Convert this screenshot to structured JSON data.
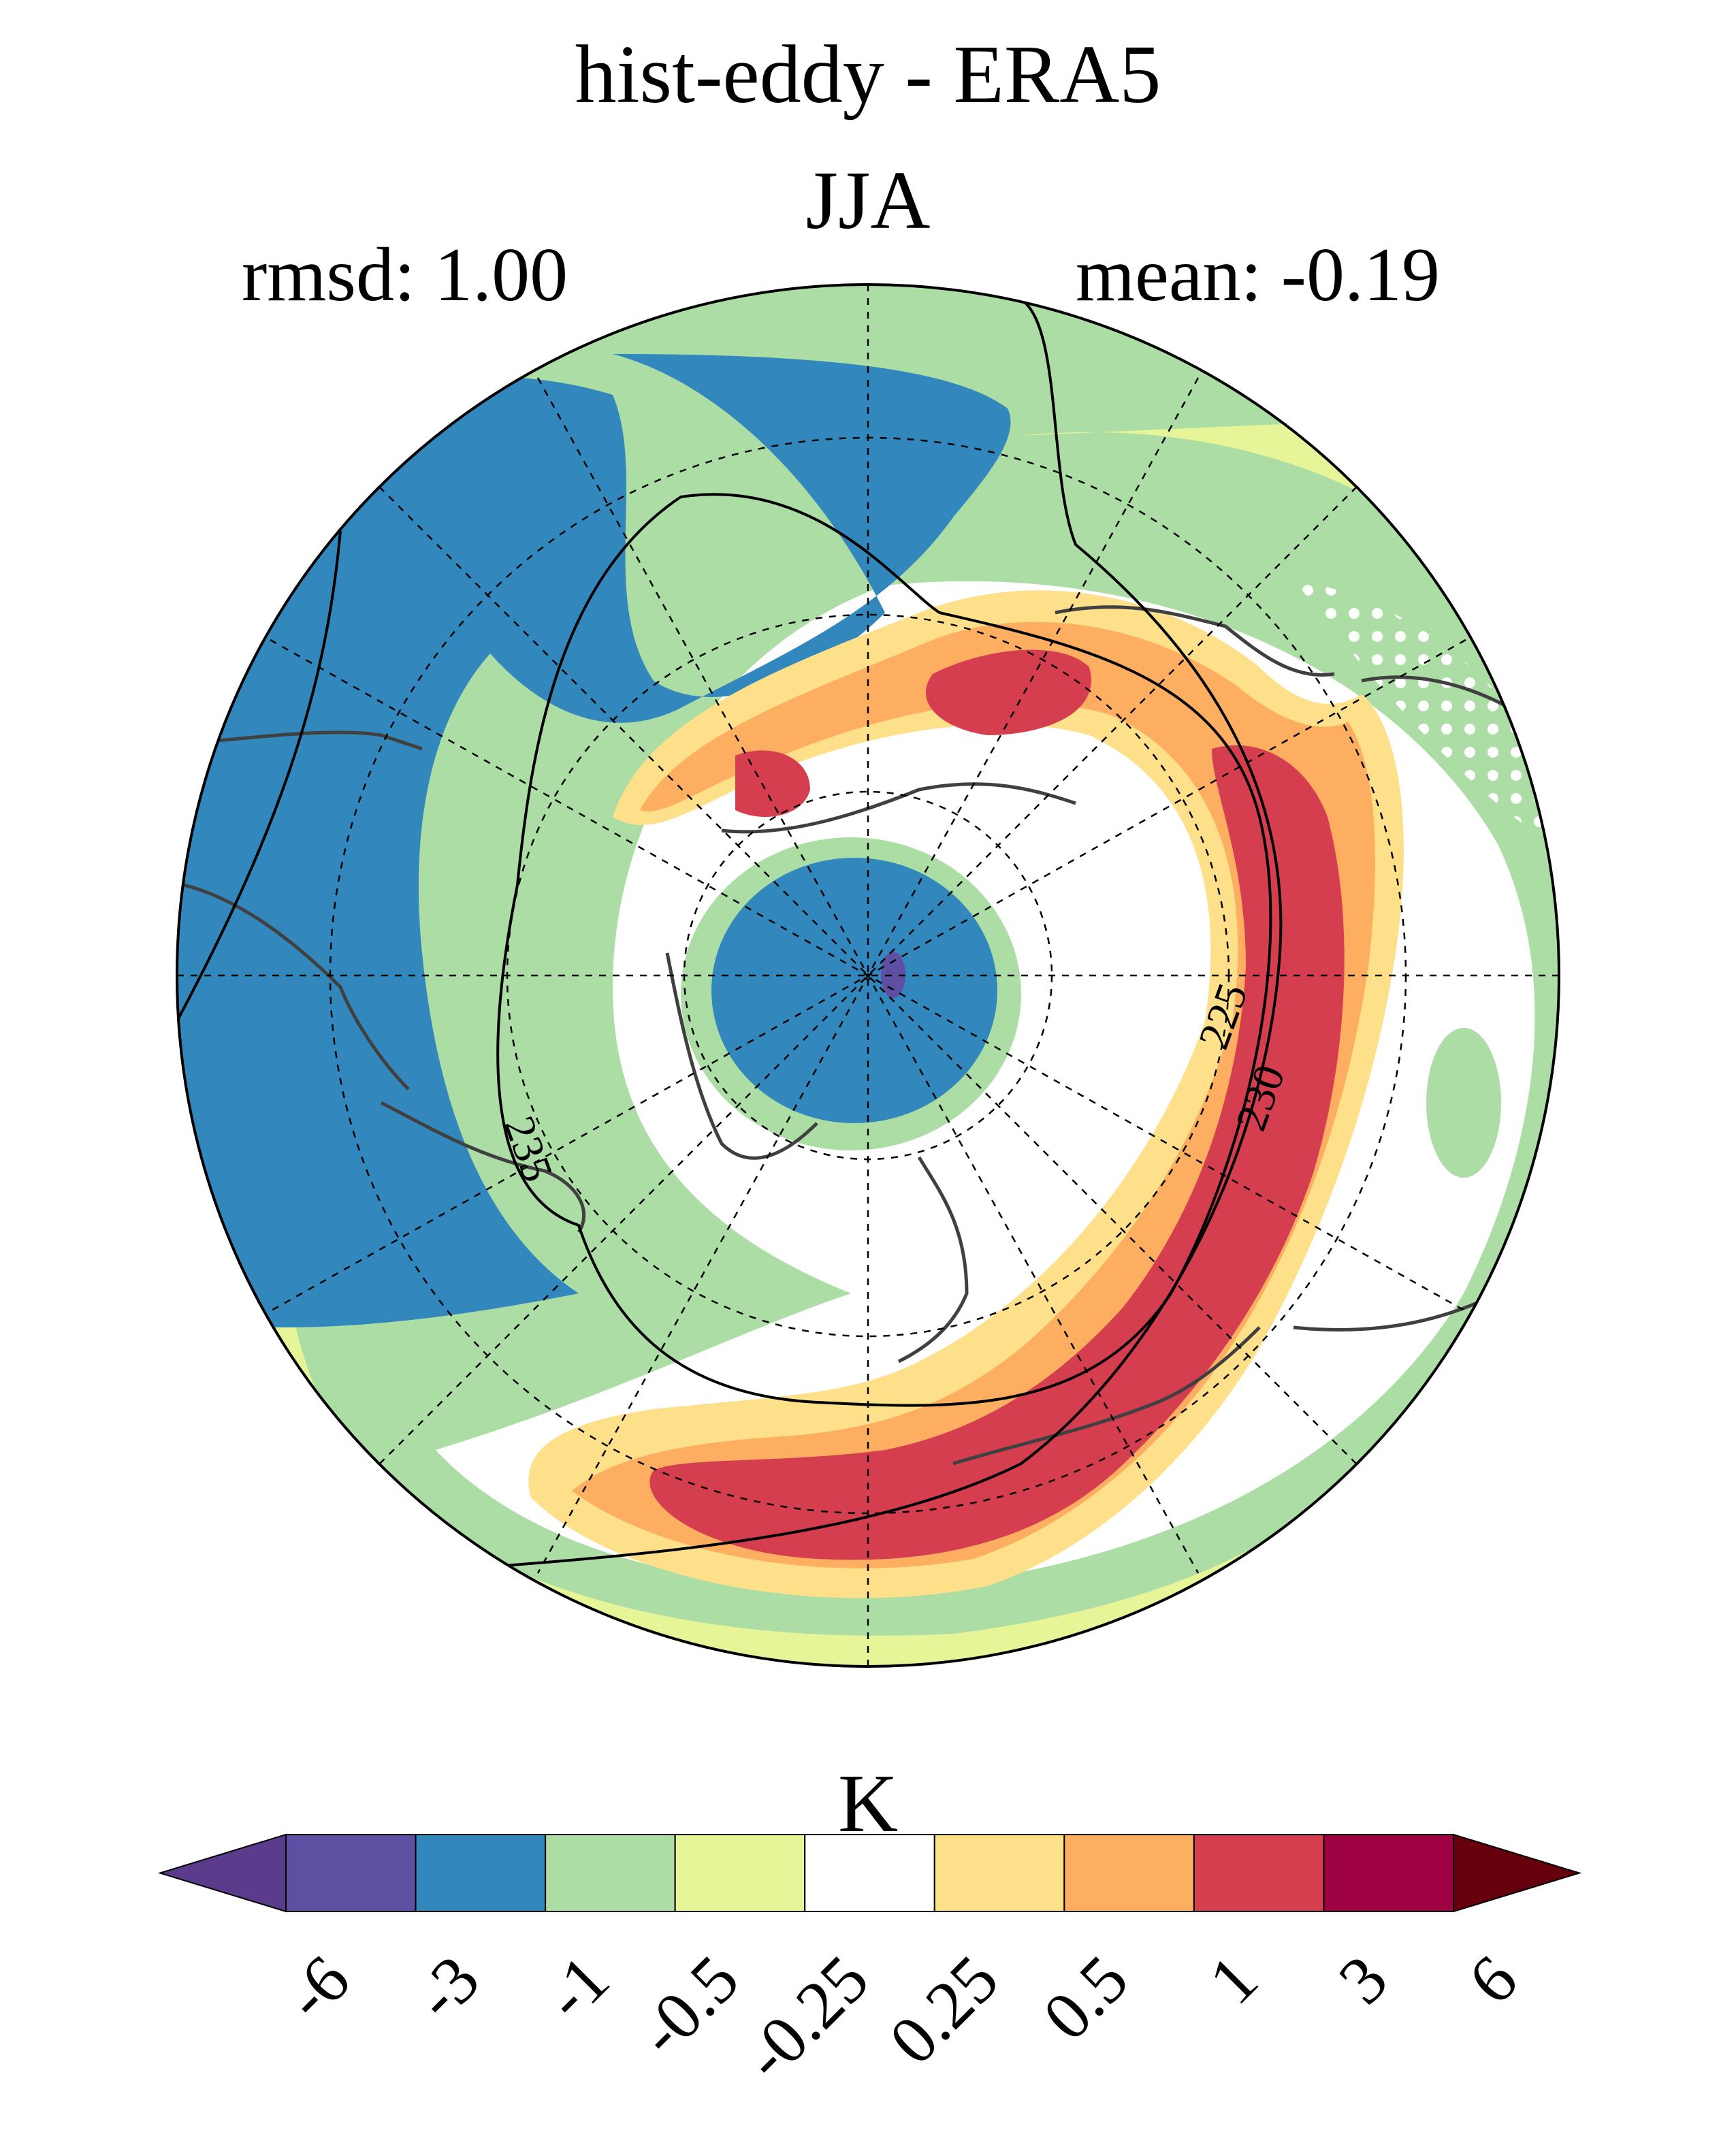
{
  "header": {
    "title": "hist-eddy - ERA5",
    "season": "JJA",
    "rmsd": "rmsd: 1.00",
    "mean": "mean: -0.19"
  },
  "map": {
    "projection": "north-polar-stereographic",
    "contour_labels": [
      "225",
      "230",
      "235"
    ]
  },
  "colorbar": {
    "unit": "K",
    "levels": [
      "-6",
      "-3",
      "-1",
      "-0.5",
      "-0.25",
      "0.25",
      "0.5",
      "1",
      "3",
      "6"
    ],
    "colors": [
      "#5b3b8c",
      "#5e4fa2",
      "#3288bd",
      "#abdda4",
      "#e6f598",
      "#ffffff",
      "#fee08b",
      "#fdae61",
      "#d53e4f",
      "#9e0142",
      "#67000d"
    ]
  }
}
